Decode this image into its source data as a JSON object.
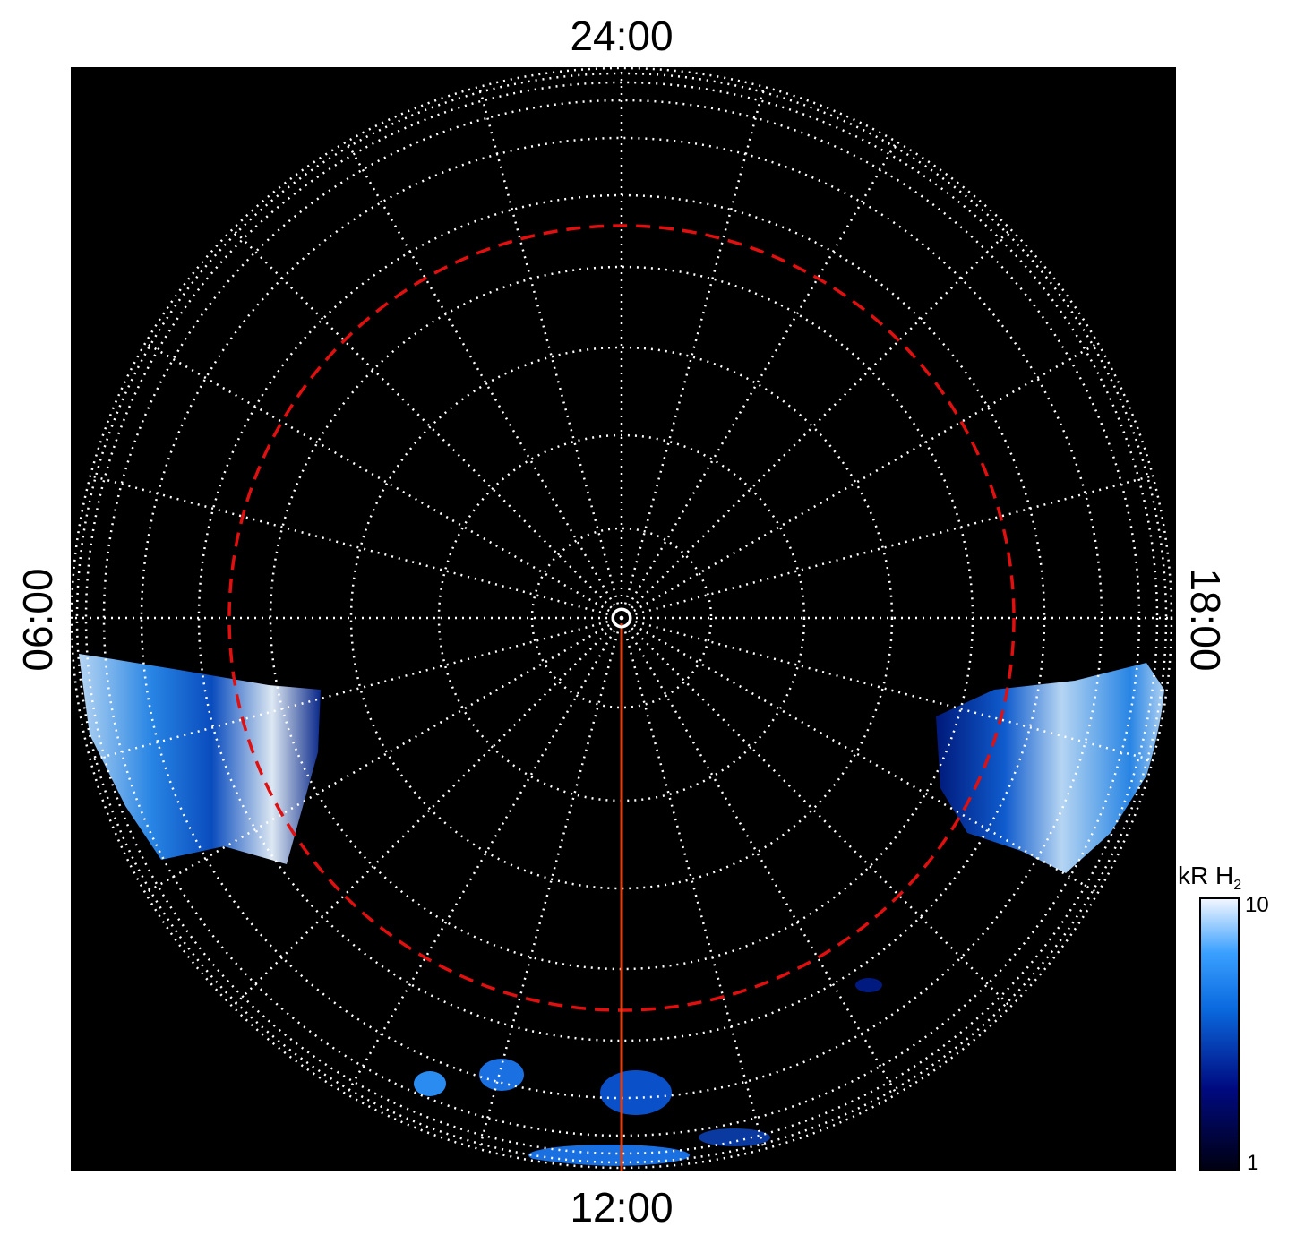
{
  "labels": {
    "top": "24:00",
    "left": "06:00",
    "right": "18:00",
    "bottom": "12:00"
  },
  "colorbar": {
    "label": "kR H",
    "label_subscript": "2",
    "max": 10,
    "min": 1
  }
}
